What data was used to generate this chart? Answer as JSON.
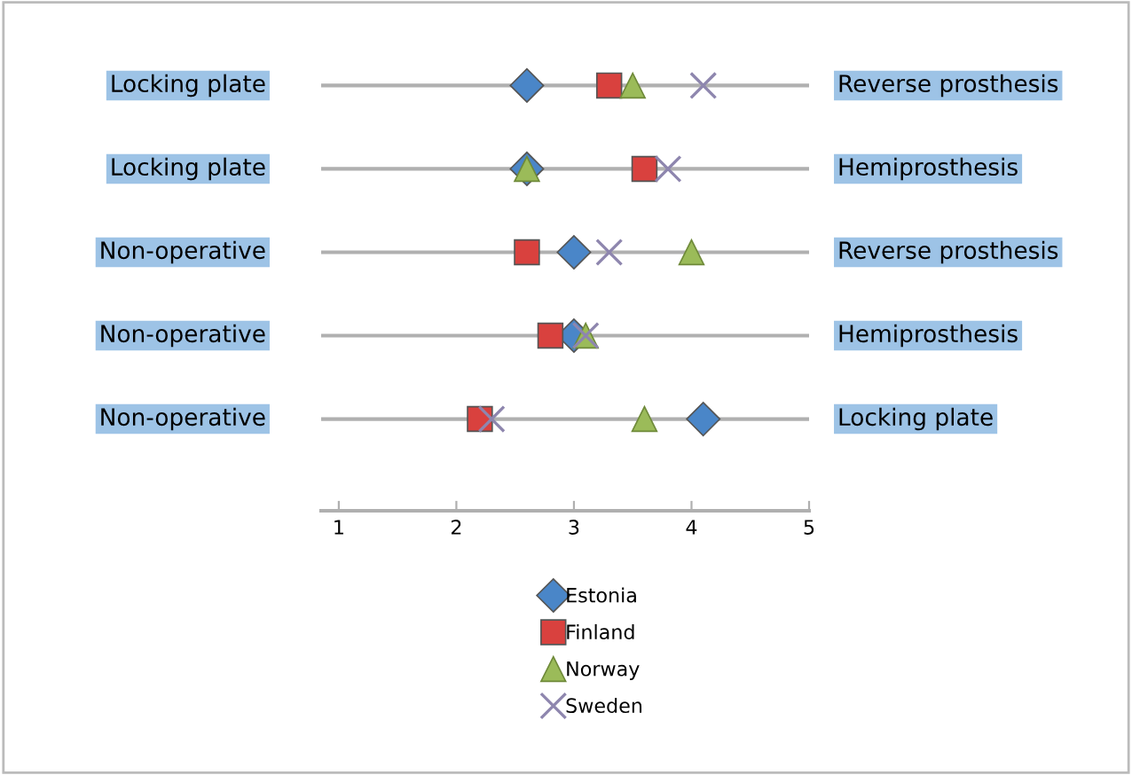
{
  "chart_data": {
    "type": "scatter",
    "orientation": "horizontal",
    "categories": [
      "Locking plate",
      "Locking plate",
      "Non-operative",
      "Non-operative",
      "Non-operative"
    ],
    "y2_categories": [
      "Reverse prosthesis",
      "Hemiprosthesis",
      "Reverse prosthesis",
      "Hemiprosthesis",
      "Locking plate"
    ],
    "series": [
      {
        "name": "Estonia",
        "color": "#4a86c8",
        "marker": "diamond",
        "values": [
          2.6,
          2.6,
          3.0,
          3.0,
          4.1
        ]
      },
      {
        "name": "Finland",
        "color": "#d9413e",
        "marker": "square",
        "values": [
          3.3,
          3.6,
          2.6,
          2.8,
          2.2
        ]
      },
      {
        "name": "Norway",
        "color": "#9bbb59",
        "marker": "triangle",
        "values": [
          3.5,
          2.6,
          4.0,
          3.1,
          3.6
        ]
      },
      {
        "name": "Sweden",
        "color": "#8e86ae",
        "marker": "cross",
        "values": [
          4.1,
          3.8,
          3.3,
          3.1,
          2.3
        ]
      }
    ],
    "xlim": [
      0.85,
      5
    ],
    "xticks": [
      1,
      2,
      3,
      4,
      5
    ],
    "grid": "y",
    "legend": "bottom"
  }
}
